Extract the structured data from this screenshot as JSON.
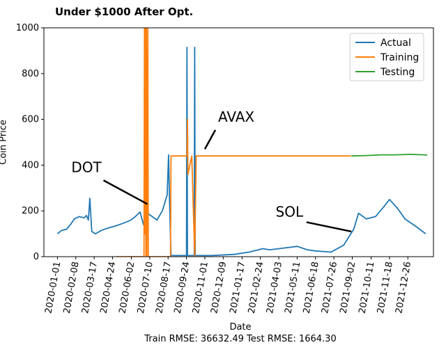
{
  "chart_data": {
    "type": "line",
    "title": "Under $1000 After Opt.",
    "xlabel": "Date",
    "ylabel": "Coin Price",
    "footer": "Train RMSE: 36632.49 Test RMSE: 1664.30",
    "ylim": [
      0,
      1000
    ],
    "yticks": [
      0,
      200,
      400,
      600,
      800,
      1000
    ],
    "xlim": [
      "2019-12-04",
      "2022-02-17"
    ],
    "xticks": [
      "2020-01-01",
      "2020-02-08",
      "2020-03-17",
      "2020-04-24",
      "2020-06-02",
      "2020-07-10",
      "2020-08-17",
      "2020-09-24",
      "2020-11-01",
      "2020-12-09",
      "2021-01-17",
      "2021-02-24",
      "2021-04-03",
      "2021-05-11",
      "2021-06-18",
      "2021-07-26",
      "2021-09-02",
      "2021-10-11",
      "2021-11-18",
      "2021-12-26"
    ],
    "grid": false,
    "legend_position": "top-right",
    "colors": {
      "actual": "#1f77b4",
      "training": "#ff7f0e",
      "testing": "#2ca02c"
    },
    "series": [
      {
        "name": "Actual",
        "points": [
          [
            "2020-01-01",
            100
          ],
          [
            "2020-01-10",
            115
          ],
          [
            "2020-01-20",
            120
          ],
          [
            "2020-01-28",
            140
          ],
          [
            "2020-02-05",
            165
          ],
          [
            "2020-02-15",
            175
          ],
          [
            "2020-02-25",
            170
          ],
          [
            "2020-03-01",
            180
          ],
          [
            "2020-03-05",
            160
          ],
          [
            "2020-03-08",
            255
          ],
          [
            "2020-03-12",
            110
          ],
          [
            "2020-03-20",
            100
          ],
          [
            "2020-04-01",
            115
          ],
          [
            "2020-04-15",
            125
          ],
          [
            "2020-05-01",
            135
          ],
          [
            "2020-05-15",
            145
          ],
          [
            "2020-06-01",
            160
          ],
          [
            "2020-06-10",
            175
          ],
          [
            "2020-06-20",
            195
          ],
          [
            "2020-06-27",
            140
          ],
          [
            "2020-07-01",
            130
          ],
          [
            "2020-07-05",
            190
          ],
          [
            "2020-07-15",
            175
          ],
          [
            "2020-07-25",
            160
          ],
          [
            "2020-08-05",
            200
          ],
          [
            "2020-08-15",
            270
          ],
          [
            "2020-08-18",
            445
          ],
          [
            "2020-08-20",
            240
          ],
          [
            "2020-08-23",
            5
          ],
          [
            "2020-09-24",
            5
          ],
          [
            "2020-09-25",
            915
          ],
          [
            "2020-09-26",
            5
          ],
          [
            "2020-10-10",
            5
          ],
          [
            "2020-10-11",
            915
          ],
          [
            "2020-10-12",
            5
          ],
          [
            "2020-11-15",
            5
          ],
          [
            "2021-01-01",
            10
          ],
          [
            "2021-02-01",
            20
          ],
          [
            "2021-03-01",
            35
          ],
          [
            "2021-03-15",
            30
          ],
          [
            "2021-04-15",
            38
          ],
          [
            "2021-05-11",
            45
          ],
          [
            "2021-06-01",
            30
          ],
          [
            "2021-06-18",
            25
          ],
          [
            "2021-07-20",
            20
          ],
          [
            "2021-08-15",
            50
          ],
          [
            "2021-09-05",
            120
          ],
          [
            "2021-09-15",
            190
          ],
          [
            "2021-10-01",
            165
          ],
          [
            "2021-10-20",
            175
          ],
          [
            "2021-11-05",
            215
          ],
          [
            "2021-11-18",
            250
          ],
          [
            "2021-12-05",
            210
          ],
          [
            "2021-12-20",
            165
          ],
          [
            "2022-01-10",
            135
          ],
          [
            "2022-02-01",
            100
          ]
        ]
      },
      {
        "name": "Training",
        "points": [
          [
            "2020-05-01",
            0
          ],
          [
            "2020-06-28",
            0
          ],
          [
            "2020-06-29",
            1000
          ],
          [
            "2020-06-30",
            100
          ],
          [
            "2020-07-01",
            1000
          ],
          [
            "2020-07-02",
            0
          ],
          [
            "2020-07-03",
            1000
          ],
          [
            "2020-07-04",
            0
          ],
          [
            "2020-07-06",
            1000
          ],
          [
            "2020-07-07",
            0
          ],
          [
            "2020-08-22",
            0
          ],
          [
            "2020-08-23",
            440
          ],
          [
            "2020-09-25",
            440
          ],
          [
            "2020-09-26",
            600
          ],
          [
            "2020-09-27",
            360
          ],
          [
            "2020-10-05",
            440
          ],
          [
            "2020-10-11",
            0
          ],
          [
            "2020-10-14",
            440
          ],
          [
            "2021-08-30",
            440
          ]
        ]
      },
      {
        "name": "Testing",
        "points": [
          [
            "2021-08-31",
            440
          ],
          [
            "2021-10-01",
            442
          ],
          [
            "2021-11-01",
            445
          ],
          [
            "2021-12-01",
            445
          ],
          [
            "2022-01-01",
            447
          ],
          [
            "2022-02-04",
            444
          ]
        ]
      }
    ],
    "annotations": [
      {
        "text": "DOT",
        "tip": [
          "2020-07-05",
          230
        ],
        "label_at": [
          "2020-03-01",
          370
        ]
      },
      {
        "text": "AVAX",
        "tip": [
          "2020-11-01",
          470
        ],
        "label_at": [
          "2021-01-05",
          590
        ]
      },
      {
        "text": "SOL",
        "tip": [
          "2021-08-31",
          110
        ],
        "label_at": [
          "2021-04-25",
          175
        ]
      }
    ]
  }
}
